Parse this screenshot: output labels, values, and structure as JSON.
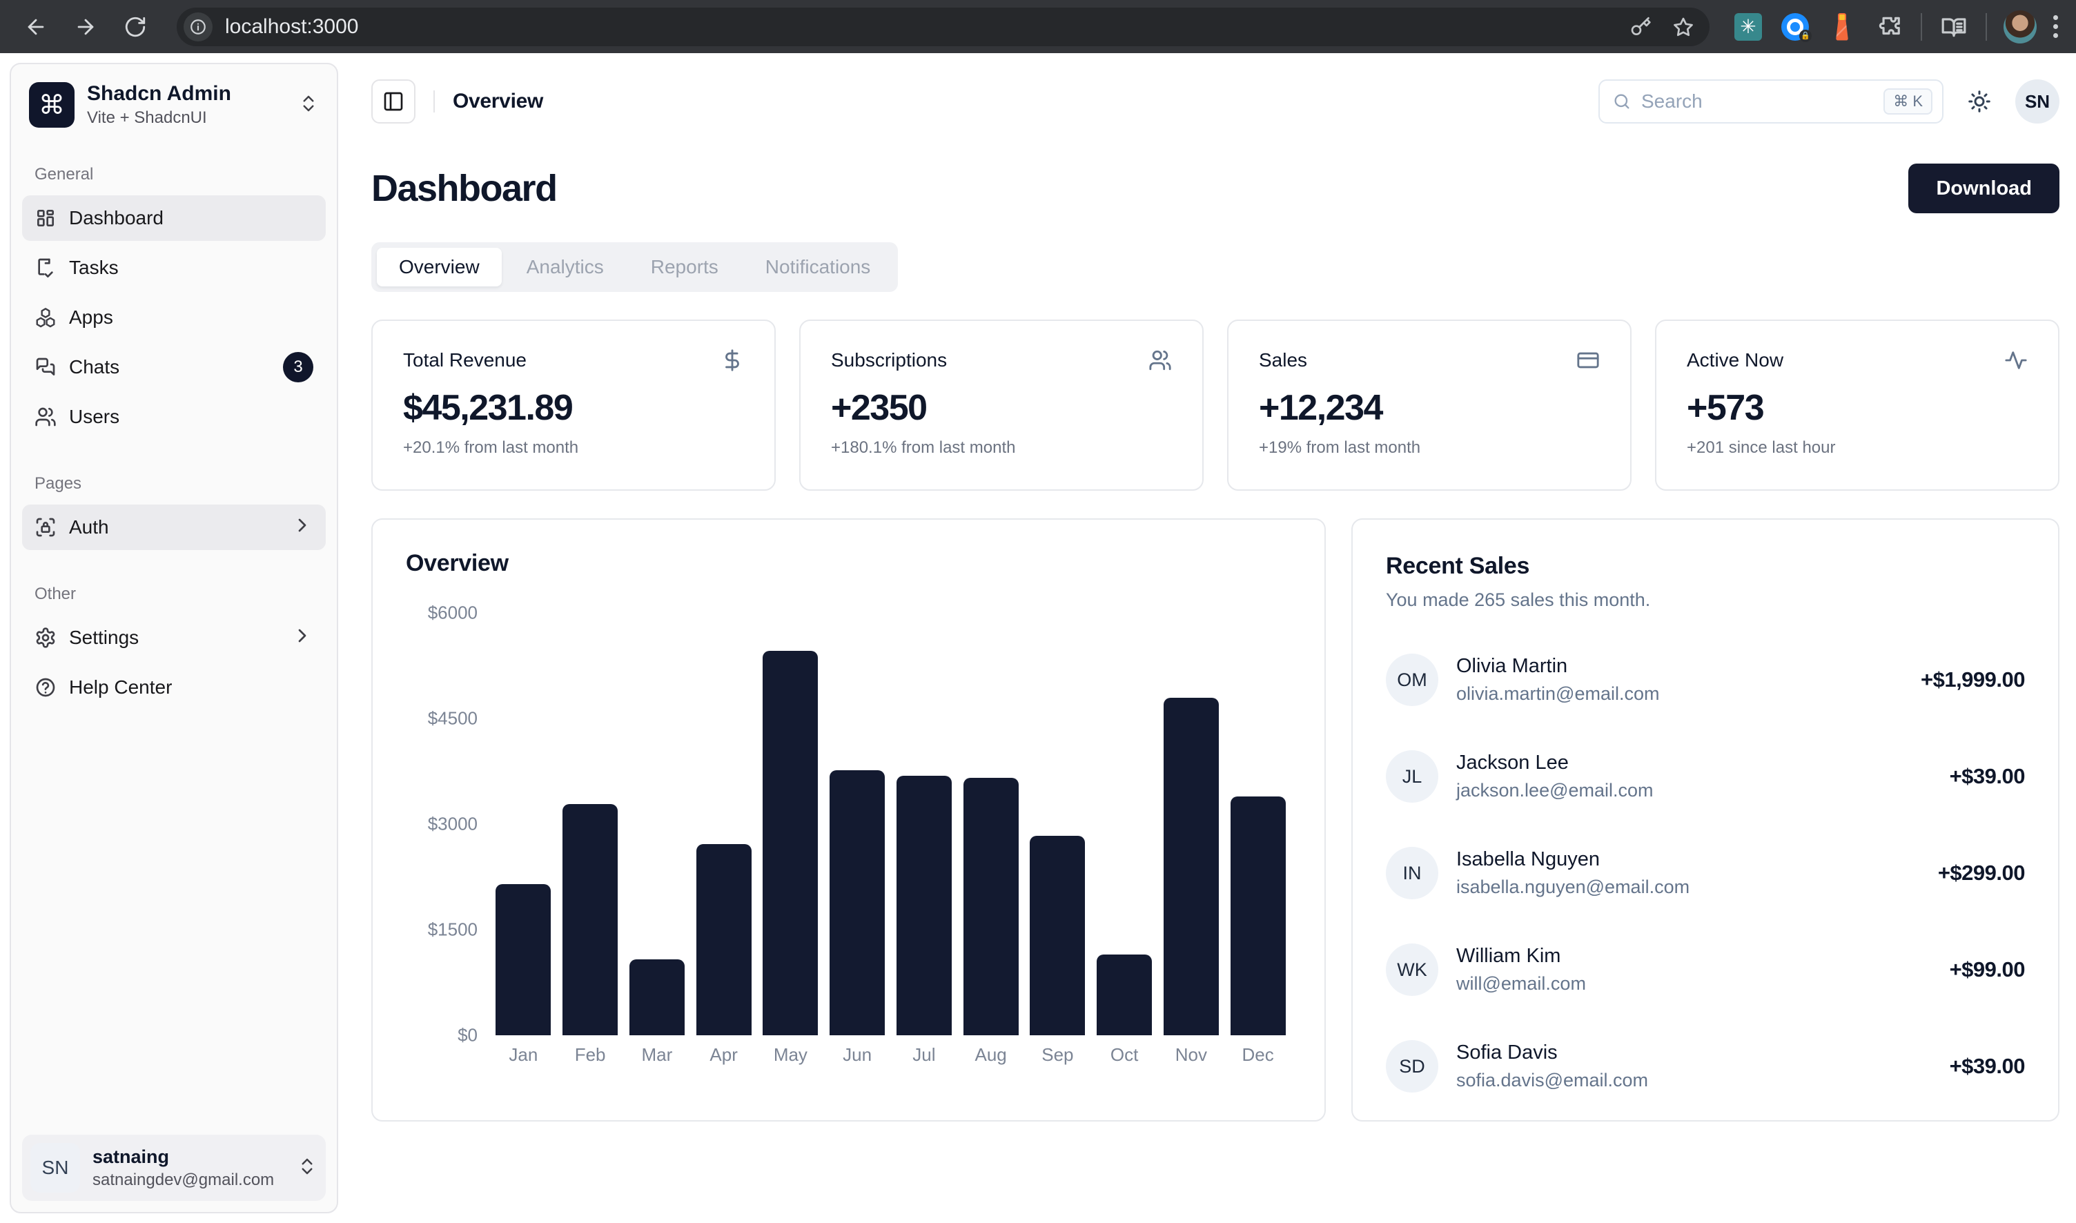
{
  "browser": {
    "url": "localhost:3000"
  },
  "sidebar": {
    "team": {
      "name": "Shadcn Admin",
      "subtitle": "Vite + ShadcnUI"
    },
    "sections": {
      "general": "General",
      "pages": "Pages",
      "other": "Other"
    },
    "items": {
      "dashboard": "Dashboard",
      "tasks": "Tasks",
      "apps": "Apps",
      "chats": "Chats",
      "chats_badge": "3",
      "users": "Users",
      "auth": "Auth",
      "settings": "Settings",
      "help": "Help Center"
    },
    "user": {
      "initials": "SN",
      "name": "satnaing",
      "email": "satnaingdev@gmail.com"
    }
  },
  "header": {
    "breadcrumb": "Overview",
    "search": {
      "placeholder": "Search",
      "shortcut": "⌘ K"
    },
    "avatar_initials": "SN"
  },
  "page": {
    "title": "Dashboard",
    "download": "Download",
    "tabs": [
      "Overview",
      "Analytics",
      "Reports",
      "Notifications"
    ]
  },
  "stats": [
    {
      "title": "Total Revenue",
      "icon": "dollar-sign",
      "value": "$45,231.89",
      "change": "+20.1% from last month"
    },
    {
      "title": "Subscriptions",
      "icon": "users",
      "value": "+2350",
      "change": "+180.1% from last month"
    },
    {
      "title": "Sales",
      "icon": "credit-card",
      "value": "+12,234",
      "change": "+19% from last month"
    },
    {
      "title": "Active Now",
      "icon": "activity",
      "value": "+573",
      "change": "+201 since last hour"
    }
  ],
  "chart_data": {
    "type": "bar",
    "title": "Overview",
    "categories": [
      "Jan",
      "Feb",
      "Mar",
      "Apr",
      "May",
      "Jun",
      "Jul",
      "Aug",
      "Sep",
      "Oct",
      "Nov",
      "Dec"
    ],
    "values": [
      2150,
      3280,
      1080,
      2720,
      5460,
      3760,
      3690,
      3660,
      2830,
      1150,
      4790,
      3390
    ],
    "yticks": [
      "$6000",
      "$4500",
      "$3000",
      "$1500",
      "$0"
    ],
    "ylim": [
      0,
      6000
    ],
    "xlabel": "",
    "ylabel": "",
    "grid": false,
    "legend": "none",
    "bar_color": "#131a30"
  },
  "recent_sales": {
    "title": "Recent Sales",
    "subtitle": "You made 265 sales this month.",
    "items": [
      {
        "initials": "OM",
        "name": "Olivia Martin",
        "email": "olivia.martin@email.com",
        "amount": "+$1,999.00"
      },
      {
        "initials": "JL",
        "name": "Jackson Lee",
        "email": "jackson.lee@email.com",
        "amount": "+$39.00"
      },
      {
        "initials": "IN",
        "name": "Isabella Nguyen",
        "email": "isabella.nguyen@email.com",
        "amount": "+$299.00"
      },
      {
        "initials": "WK",
        "name": "William Kim",
        "email": "will@email.com",
        "amount": "+$99.00"
      },
      {
        "initials": "SD",
        "name": "Sofia Davis",
        "email": "sofia.davis@email.com",
        "amount": "+$39.00"
      }
    ]
  },
  "colors": {
    "primary": "#151a2e",
    "chart_bar": "#131a30",
    "badge": "#10162b",
    "sidebar_bg": "#fafafa",
    "active_item_bg": "#ebebee",
    "muted_text": "#64748b",
    "browser_bar": "#333539"
  }
}
